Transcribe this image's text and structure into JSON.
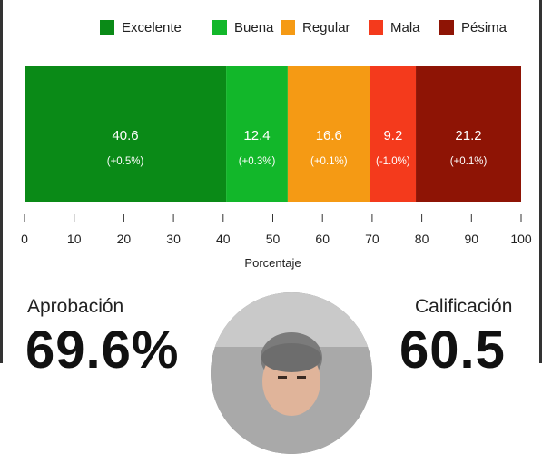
{
  "legend": [
    {
      "label": "Excelente",
      "color": "#0a8a17"
    },
    {
      "label": "Buena",
      "color": "#12b72a"
    },
    {
      "label": "Regular",
      "color": "#f59a14"
    },
    {
      "label": "Mala",
      "color": "#f43a1c"
    },
    {
      "label": "Pésima",
      "color": "#8e1405"
    }
  ],
  "chart_data": {
    "type": "bar",
    "orientation": "horizontal-stacked",
    "series": [
      {
        "name": "Excelente",
        "value": 40.6,
        "value_label": "40.6",
        "change_label": "(+0.5%)",
        "color": "#0a8a17"
      },
      {
        "name": "Buena",
        "value": 12.4,
        "value_label": "12.4",
        "change_label": "(+0.3%)",
        "color": "#12b72a"
      },
      {
        "name": "Regular",
        "value": 16.6,
        "value_label": "16.6",
        "change_label": "(+0.1%)",
        "color": "#f59a14"
      },
      {
        "name": "Mala",
        "value": 9.2,
        "value_label": "9.2",
        "change_label": "(-1.0%)",
        "color": "#f43a1c"
      },
      {
        "name": "Pésima",
        "value": 21.2,
        "value_label": "21.2",
        "change_label": "(+0.1%)",
        "color": "#8e1405"
      }
    ],
    "xlabel": "Porcentaje",
    "xlim": [
      0,
      100
    ],
    "xticks": [
      "0",
      "10",
      "20",
      "30",
      "40",
      "50",
      "60",
      "70",
      "80",
      "90",
      "100"
    ],
    "legend_position": "top"
  },
  "stats": {
    "approval_label": "Aprobación",
    "approval_value": "69.6%",
    "rating_label": "Calificación",
    "rating_value": "60.5"
  }
}
